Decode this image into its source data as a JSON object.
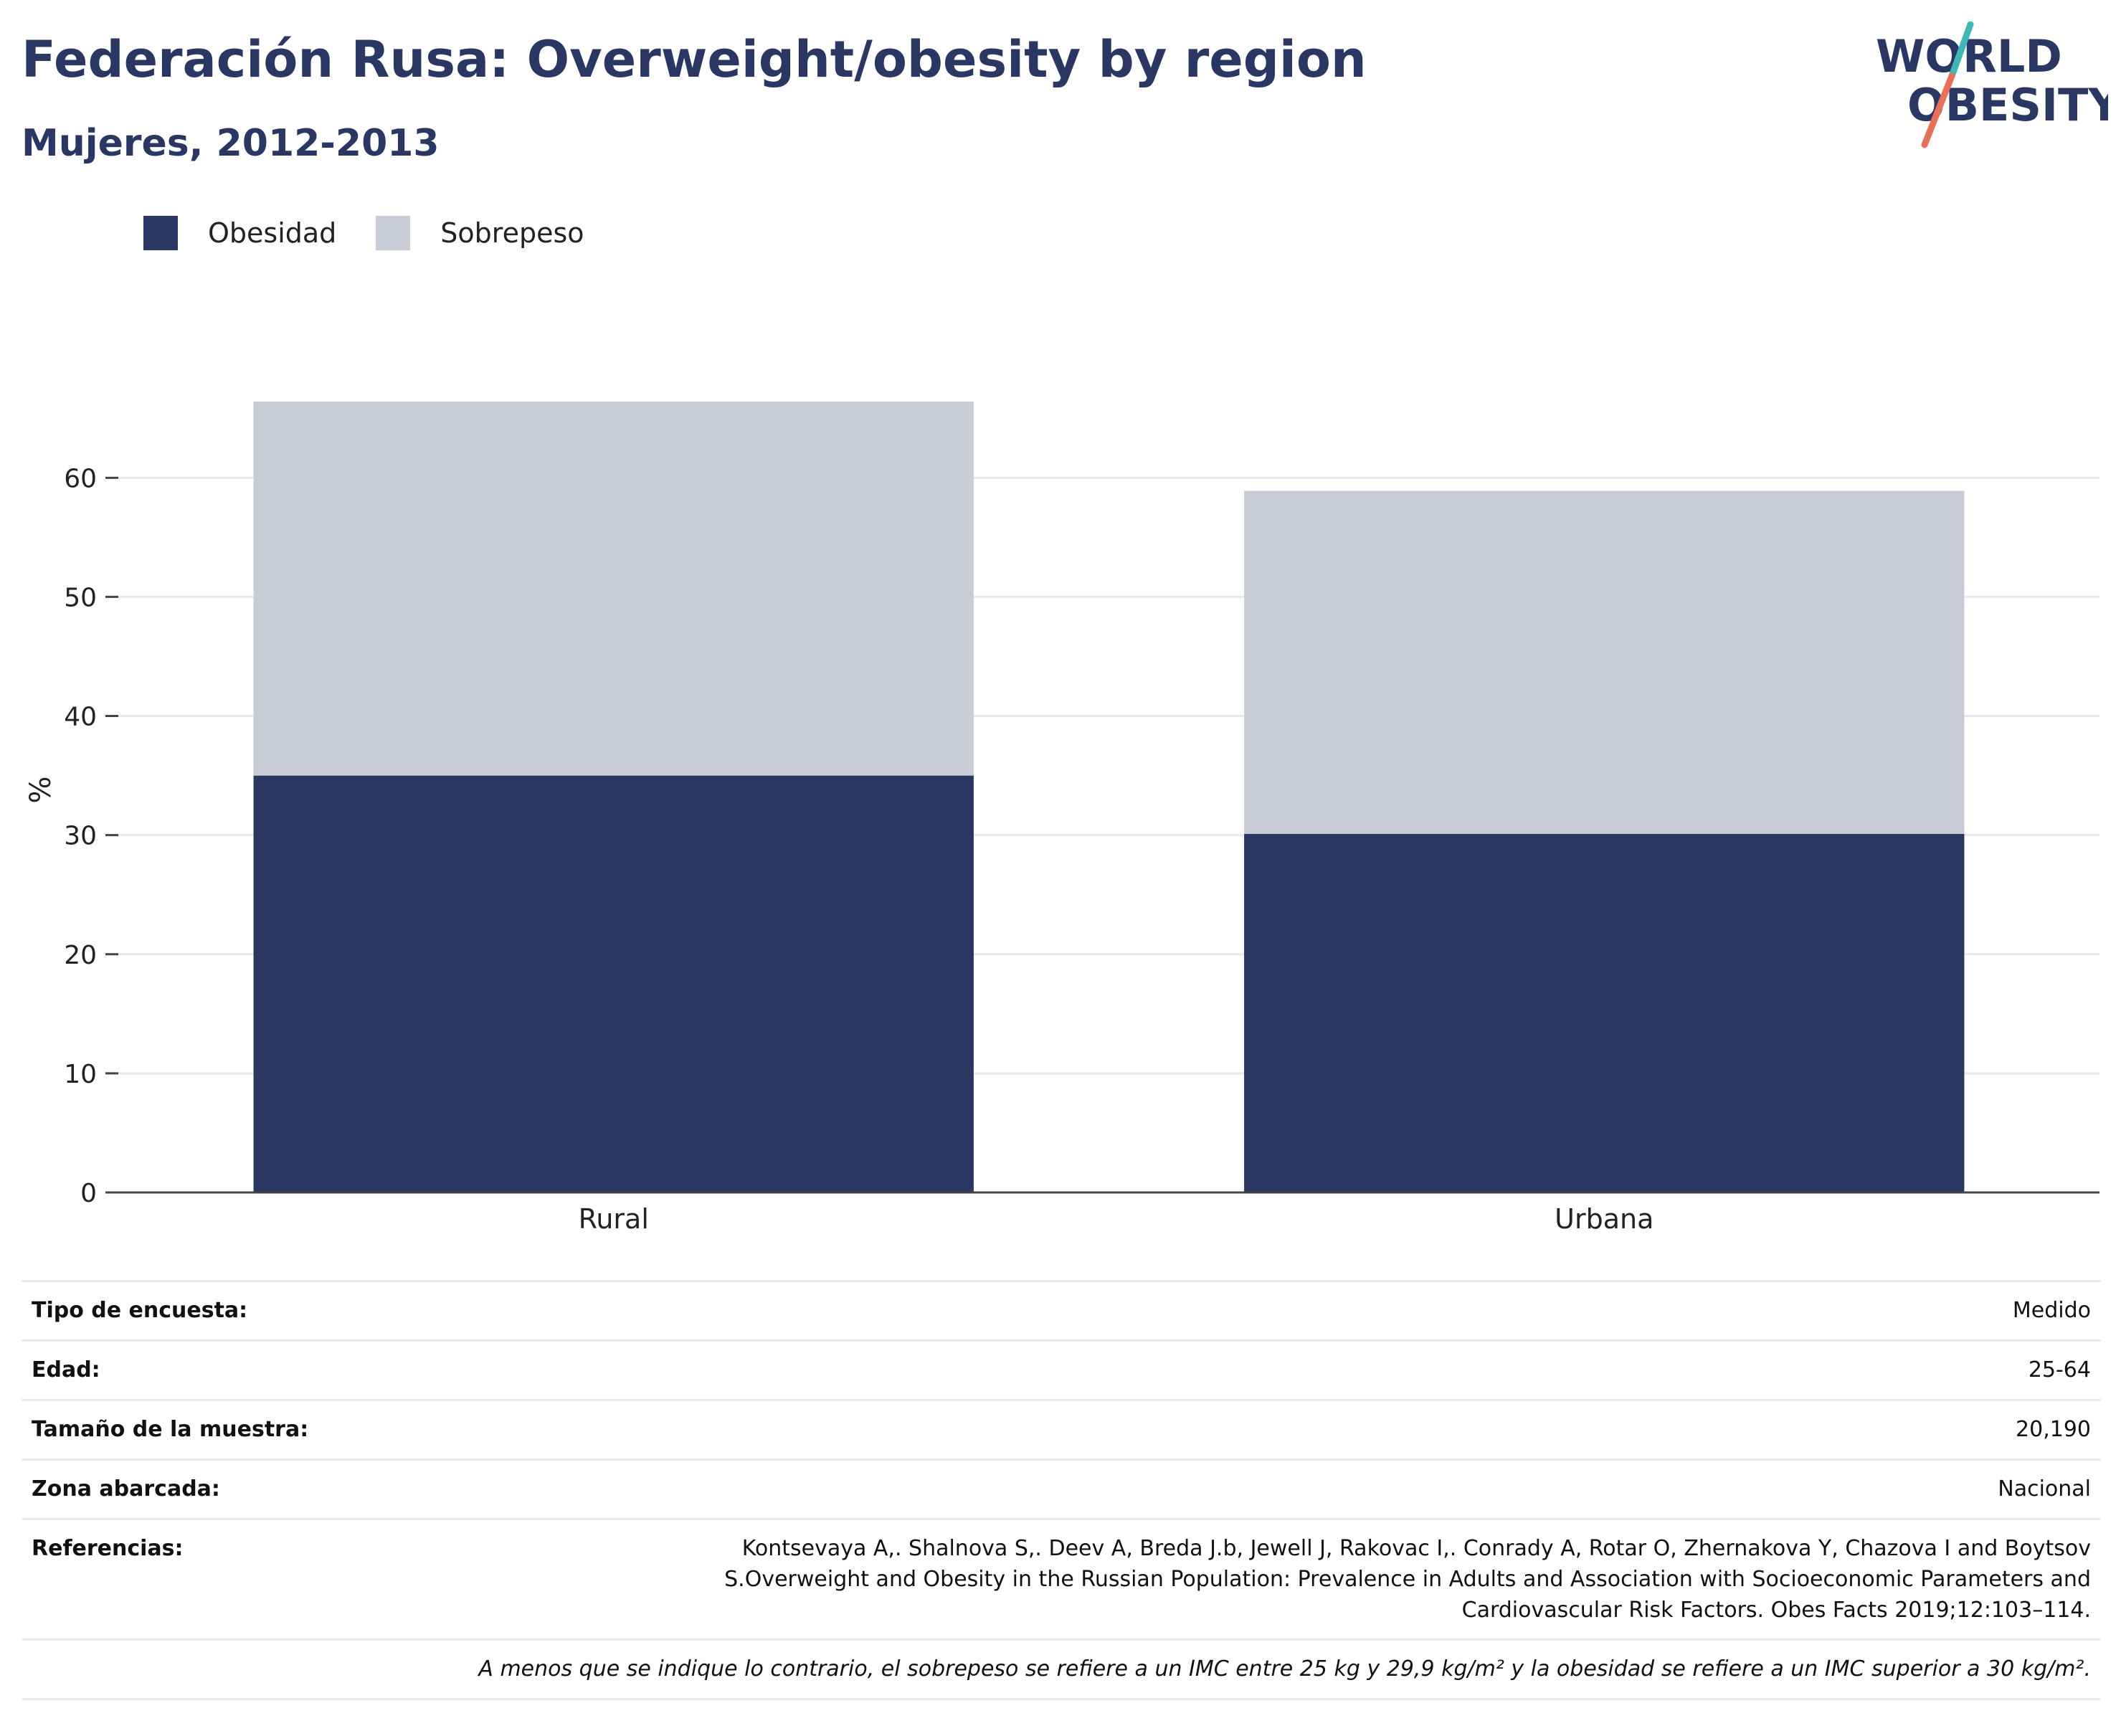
{
  "title": "Federación Rusa: Overweight/obesity by region",
  "subtitle": "Mujeres, 2012-2013",
  "logo": {
    "line1": "WORLD",
    "line2": "OBESITY",
    "colors": {
      "text": "#2a3762",
      "slash_top": "#3fb8b5",
      "slash_bottom": "#e8705a"
    }
  },
  "legend": [
    {
      "label": "Obesidad",
      "color": "#2a3762"
    },
    {
      "label": "Sobrepeso",
      "color": "#c9ccd7"
    }
  ],
  "chart_data": {
    "type": "bar",
    "stacked": true,
    "categories": [
      "Rural",
      "Urbana"
    ],
    "series": [
      {
        "name": "Obesidad",
        "values": [
          35.0,
          30.1
        ],
        "color": "#2a3762"
      },
      {
        "name": "Sobrepeso",
        "values": [
          31.4,
          28.8
        ],
        "color": "#c9ccd7"
      }
    ],
    "xlabel": "",
    "ylabel": "%",
    "ylim": [
      0,
      66.4
    ],
    "yticks": [
      0,
      10,
      20,
      30,
      40,
      50,
      60
    ],
    "grid": true,
    "legend_position": "top-left"
  },
  "info": {
    "rows": [
      {
        "key": "Tipo de encuesta:",
        "value": "Medido"
      },
      {
        "key": "Edad:",
        "value": "25-64"
      },
      {
        "key": "Tamaño de la muestra:",
        "value": "20,190"
      },
      {
        "key": "Zona abarcada:",
        "value": "Nacional"
      }
    ],
    "references": {
      "key": "Referencias:",
      "lines": [
        "Kontsevaya A,. Shalnova S,. Deev A, Breda J.b, Jewell J, Rakovac I,. Conrady A, Rotar O, Zhernakova Y, Chazova I and Boytsov",
        "S.Overweight and Obesity in the Russian Population: Prevalence in Adults and Association with Socioeconomic Parameters and",
        "Cardiovascular Risk Factors. Obes Facts 2019;12:103–114."
      ]
    },
    "note": "A menos que se indique lo contrario, el sobrepeso se refiere a un IMC entre 25 kg y 29,9 kg/m² y la obesidad se refiere a un IMC superior a 30 kg/m²."
  }
}
